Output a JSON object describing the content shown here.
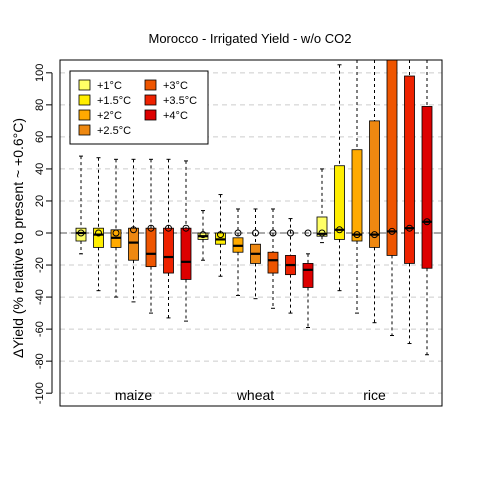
{
  "chart_data": {
    "type": "box",
    "title": "Morocco - Irrigated Yield - w/o CO2",
    "ylabel": "ΔYield (% relative to present ~ +0.6°C)",
    "xlabel": "",
    "ylim": [
      -108,
      108
    ],
    "yticks": [
      -100,
      -80,
      -60,
      -40,
      -20,
      0,
      20,
      40,
      60,
      80,
      100
    ],
    "grid": true,
    "reference_line": 0,
    "legend": {
      "placement": "top-left",
      "columns": 2,
      "entries": [
        {
          "label": "+1°C",
          "color": "#ffff66"
        },
        {
          "label": "+1.5°C",
          "color": "#ffee00"
        },
        {
          "label": "+2°C",
          "color": "#ffaa00"
        },
        {
          "label": "+2.5°C",
          "color": "#ee8811"
        },
        {
          "label": "+3°C",
          "color": "#ee5500"
        },
        {
          "label": "+3.5°C",
          "color": "#ee2200"
        },
        {
          "label": "+4°C",
          "color": "#dd0000"
        }
      ]
    },
    "groups": [
      {
        "name": "maize",
        "boxes": [
          {
            "scenario": "+1°C",
            "min": -13,
            "q1": -5,
            "median": 0,
            "q3": 3,
            "max": 48,
            "open_circle": 0
          },
          {
            "scenario": "+1.5°C",
            "min": -36,
            "q1": -9,
            "median": -1,
            "q3": 3,
            "max": 47,
            "open_circle": 0
          },
          {
            "scenario": "+2°C",
            "min": -40,
            "q1": -9,
            "median": -3,
            "q3": 2,
            "max": 46,
            "open_circle": 0
          },
          {
            "scenario": "+2.5°C",
            "min": -43,
            "q1": -17,
            "median": -6,
            "q3": 3,
            "max": 46,
            "open_circle": 2
          },
          {
            "scenario": "+3°C",
            "min": -50,
            "q1": -21,
            "median": -13,
            "q3": 3,
            "max": 46,
            "open_circle": 3
          },
          {
            "scenario": "+3.5°C",
            "min": -53,
            "q1": -25,
            "median": -15,
            "q3": 3,
            "max": 46,
            "open_circle": 3
          },
          {
            "scenario": "+4°C",
            "min": -55,
            "q1": -29,
            "median": -18,
            "q3": 3,
            "max": 45,
            "open_circle": 3
          }
        ]
      },
      {
        "name": "wheat",
        "boxes": [
          {
            "scenario": "+1°C",
            "min": -17,
            "q1": -4,
            "median": -2,
            "q3": 0,
            "max": 14,
            "open_circle": -1
          },
          {
            "scenario": "+1.5°C",
            "min": -27,
            "q1": -7,
            "median": -4,
            "q3": 0,
            "max": 24,
            "open_circle": -1
          },
          {
            "scenario": "+2°C",
            "min": -39,
            "q1": -12,
            "median": -8,
            "q3": -3,
            "max": 15,
            "open_circle": 0
          },
          {
            "scenario": "+2.5°C",
            "min": -41,
            "q1": -19,
            "median": -13,
            "q3": -7,
            "max": 15,
            "open_circle": 0
          },
          {
            "scenario": "+3°C",
            "min": -47,
            "q1": -25,
            "median": -17,
            "q3": -12,
            "max": 15,
            "open_circle": 0
          },
          {
            "scenario": "+3.5°C",
            "min": -50,
            "q1": -26,
            "median": -20,
            "q3": -14,
            "max": 9,
            "open_circle": 0
          },
          {
            "scenario": "+4°C",
            "min": -59,
            "q1": -34,
            "median": -23,
            "q3": -19,
            "max": -13,
            "open_circle": 0
          }
        ]
      },
      {
        "name": "rice",
        "boxes": [
          {
            "scenario": "+1°C",
            "min": -6,
            "q1": -2,
            "median": -0.5,
            "q3": 10,
            "max": 40,
            "open_circle": 0
          },
          {
            "scenario": "+1.5°C",
            "min": -36,
            "q1": -4,
            "median": 2,
            "q3": 42,
            "max": 105,
            "open_circle": 2
          },
          {
            "scenario": "+2°C",
            "min": -50,
            "q1": -5,
            "median": -1,
            "q3": 52,
            "max": 108,
            "open_circle": -1
          },
          {
            "scenario": "+2.5°C",
            "min": -56,
            "q1": -9,
            "median": -1,
            "q3": 70,
            "max": 108,
            "open_circle": -1
          },
          {
            "scenario": "+3°C",
            "min": -64,
            "q1": -14,
            "median": 1,
            "q3": 108,
            "max": 108,
            "open_circle": 1
          },
          {
            "scenario": "+3.5°C",
            "min": -69,
            "q1": -19,
            "median": 3,
            "q3": 98,
            "max": 108,
            "open_circle": 3
          },
          {
            "scenario": "+4°C",
            "min": -76,
            "q1": -22,
            "median": 7,
            "q3": 79,
            "max": 108,
            "open_circle": 7
          }
        ]
      }
    ]
  }
}
